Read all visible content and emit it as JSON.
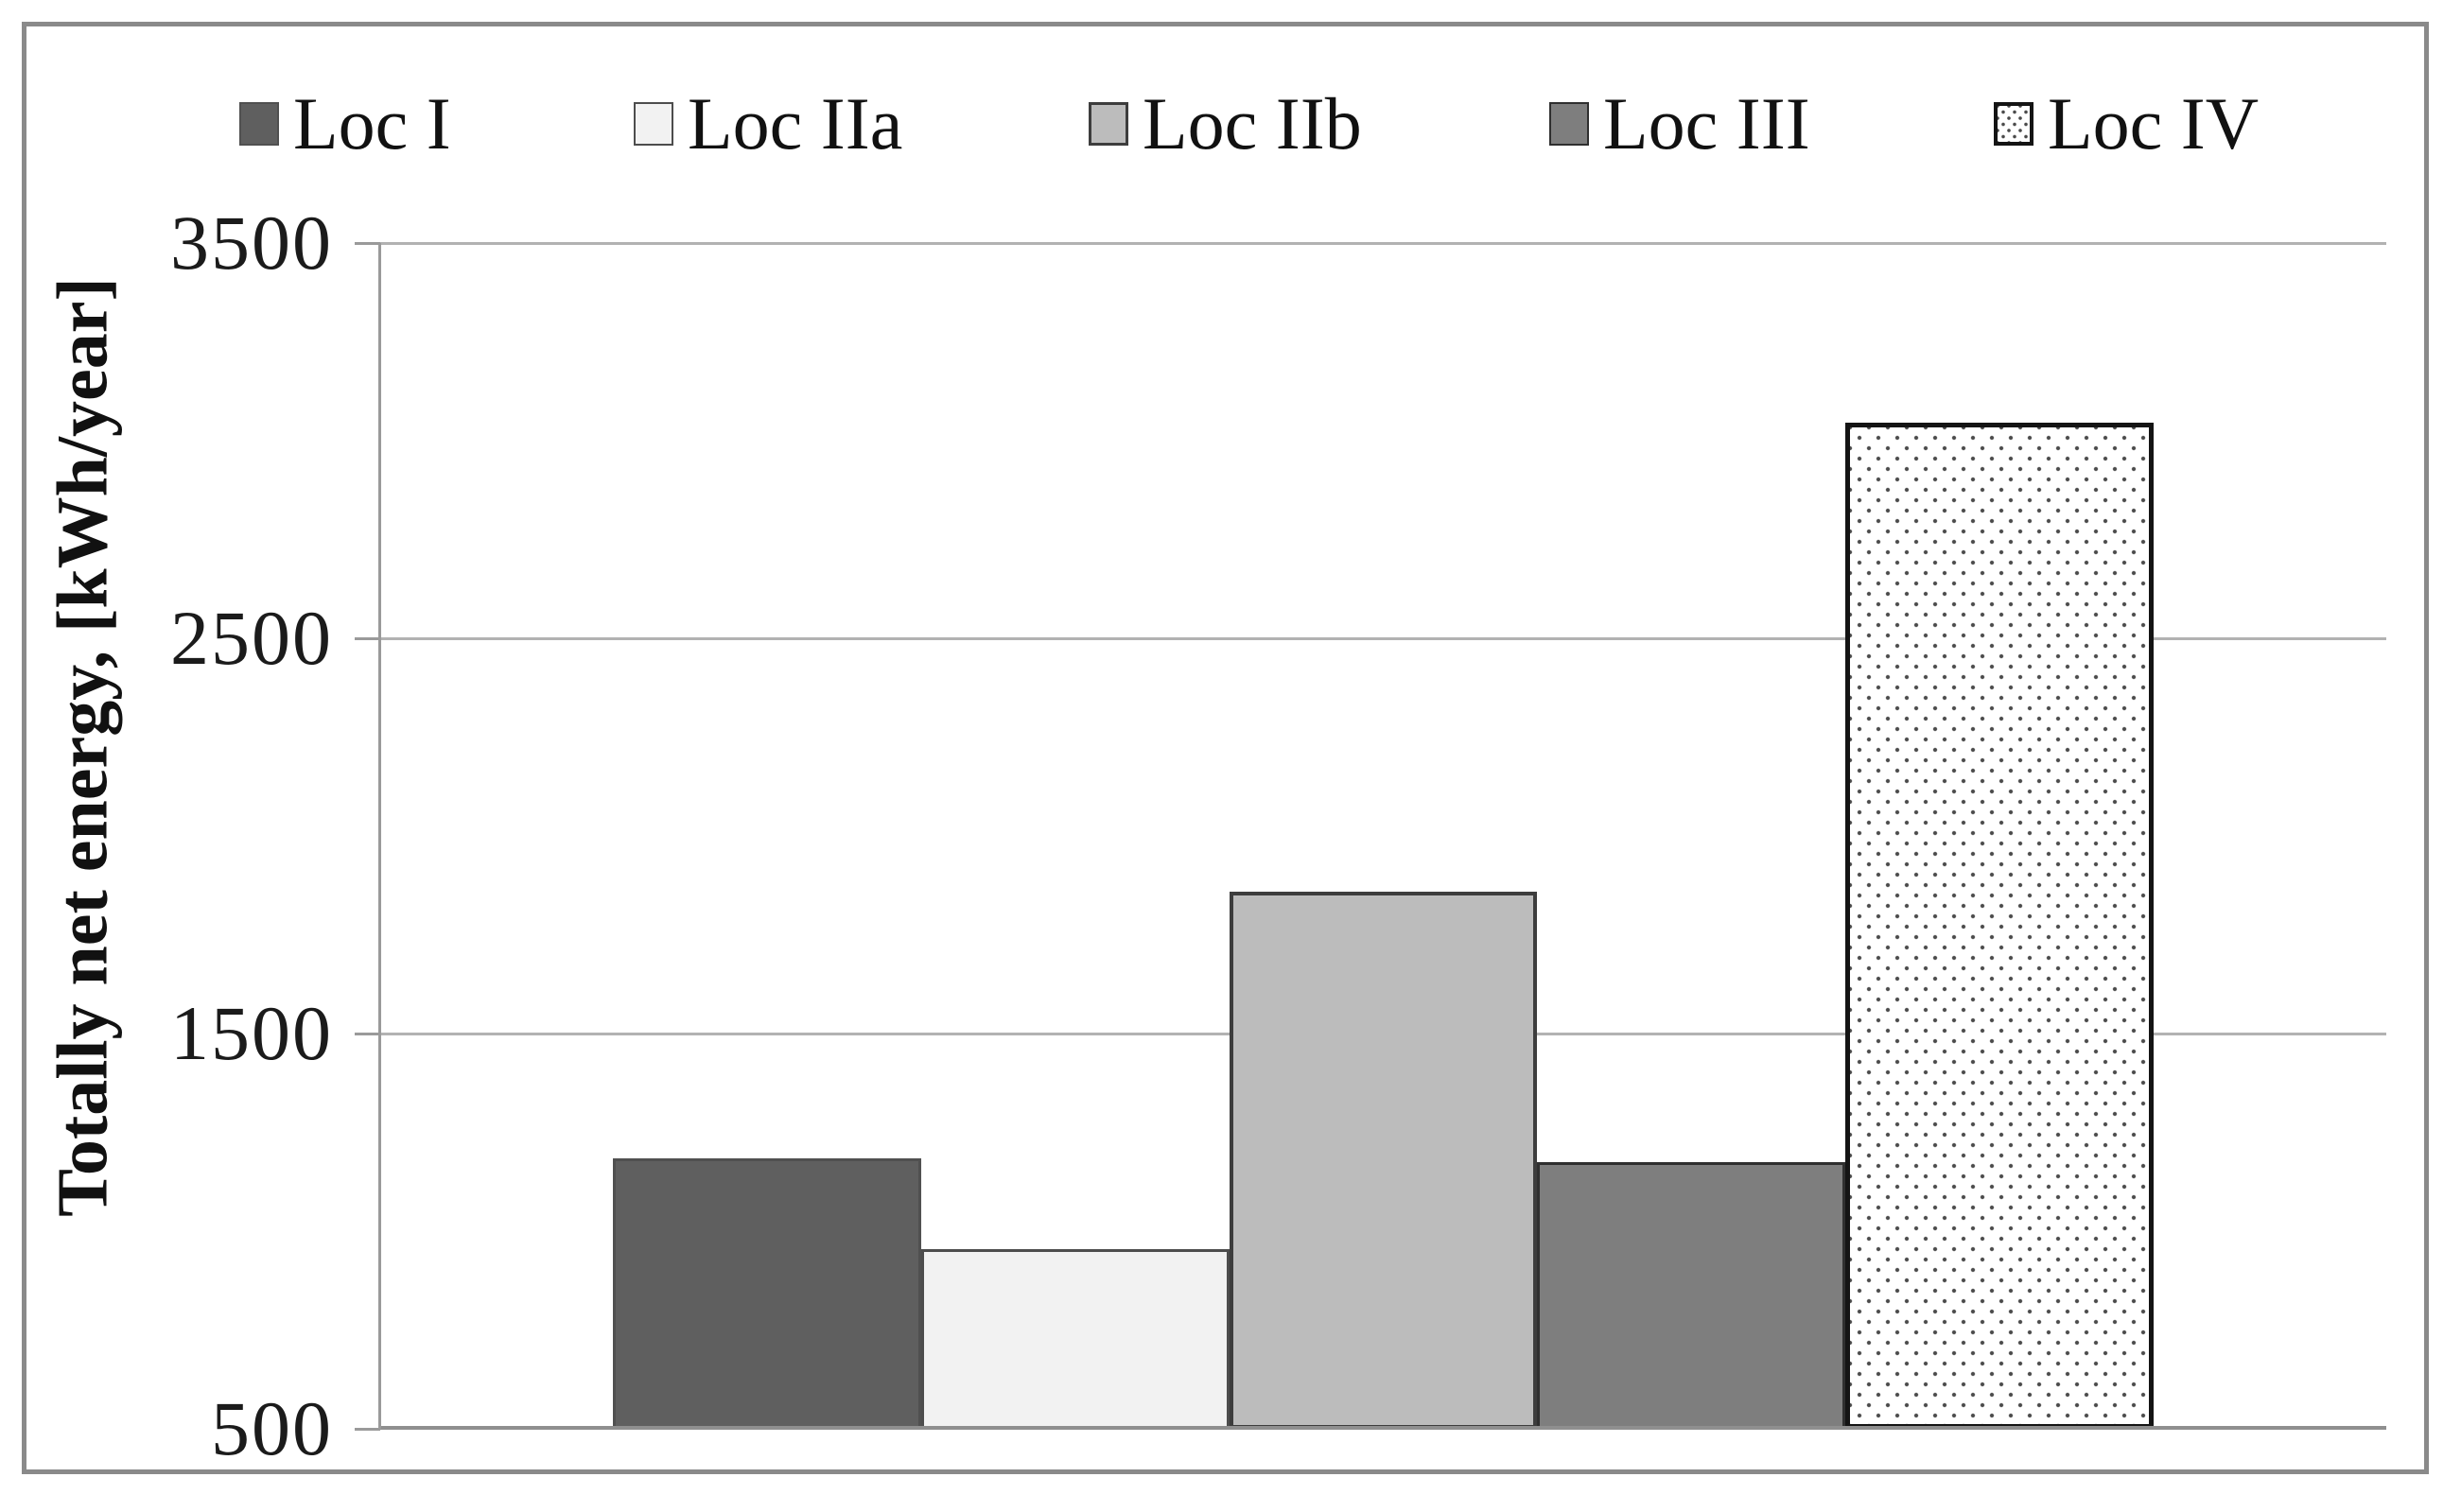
{
  "chart_data": {
    "type": "bar",
    "title": "",
    "xlabel": "",
    "ylabel": "Totally net energy, [kWh/year]",
    "units": "kWh/year",
    "ylim": [
      500,
      3500
    ],
    "yticks": [
      3500,
      2500,
      1500,
      500
    ],
    "ytick_labels": [
      "3500",
      "2500",
      "1500",
      "500"
    ],
    "grid": true,
    "legend_position": "top",
    "categories": [
      ""
    ],
    "series": [
      {
        "name": "Loc I",
        "value": 1185,
        "fill": "#5f5f5f",
        "border": "#505050",
        "border_width": 3,
        "pattern": "solid"
      },
      {
        "name": "Loc IIa",
        "value": 955,
        "fill": "#f2f2f2",
        "border": "#4d4d4d",
        "border_width": 3,
        "pattern": "solid"
      },
      {
        "name": "Loc IIb",
        "value": 1860,
        "fill": "#bcbcbc",
        "border": "#3d3d3d",
        "border_width": 4,
        "pattern": "solid"
      },
      {
        "name": "Loc III",
        "value": 1175,
        "fill": "#7e7e7e",
        "border": "#2f2f2f",
        "border_width": 3,
        "pattern": "solid"
      },
      {
        "name": "Loc IV",
        "value": 3045,
        "fill": "#ffffff",
        "border": "#141414",
        "border_width": 5,
        "pattern": "dots",
        "dot_color": "#4a4a4a"
      }
    ],
    "colors": {
      "gridline": "#b2b2b2",
      "axis": "#9a9a9a",
      "frame": "#8a8a8a",
      "text": "#111111"
    }
  }
}
